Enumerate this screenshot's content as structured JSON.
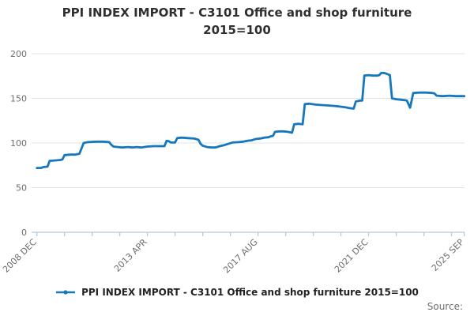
{
  "title": {
    "line1": "PPI INDEX IMPORT - C3101 Office and shop furniture",
    "line2": "2015=100"
  },
  "legend": {
    "label": "PPI INDEX IMPORT - C3101 Office and shop furniture 2015=100"
  },
  "source_label": "Source:",
  "colors": {
    "line": "#1577bd",
    "axis": "#b3cbdf",
    "grid": "#e3e3e3",
    "tick_label": "#6e6e6e"
  },
  "chart_data": {
    "type": "line",
    "title": "PPI INDEX IMPORT - C3101 Office and shop furniture 2015=100",
    "x_unit": "months since 2008 DEC",
    "x_tick_labels": [
      "2008 DEC",
      "2013 APR",
      "2017 AUG",
      "2021 DEC",
      "2025 SEP"
    ],
    "x_tick_label_months": [
      0,
      52,
      104,
      156,
      201
    ],
    "x_minor_tick_every_months": 13,
    "x_range_months": [
      0,
      201
    ],
    "y_ticks": [
      0,
      50,
      100,
      150,
      200
    ],
    "ylim": [
      0,
      200
    ],
    "grid": "horizontal",
    "legend_position": "bottom",
    "series": [
      {
        "name": "PPI INDEX IMPORT - C3101 Office and shop furniture 2015=100",
        "points": [
          [
            0,
            72
          ],
          [
            2,
            72
          ],
          [
            3,
            73
          ],
          [
            5,
            73.5
          ],
          [
            6,
            80
          ],
          [
            9,
            80.5
          ],
          [
            11,
            81
          ],
          [
            12,
            81.5
          ],
          [
            13,
            86.5
          ],
          [
            16,
            87
          ],
          [
            18,
            87
          ],
          [
            20,
            88
          ],
          [
            21,
            94
          ],
          [
            22,
            100
          ],
          [
            24,
            101
          ],
          [
            28,
            101.5
          ],
          [
            31,
            101.5
          ],
          [
            34,
            101
          ],
          [
            35,
            98
          ],
          [
            36,
            96
          ],
          [
            38,
            95.5
          ],
          [
            40,
            95
          ],
          [
            43,
            95.5
          ],
          [
            45,
            95
          ],
          [
            47,
            95.5
          ],
          [
            49,
            95
          ],
          [
            52,
            96
          ],
          [
            55,
            96.5
          ],
          [
            58,
            96.5
          ],
          [
            60,
            96.5
          ],
          [
            61,
            102.5
          ],
          [
            62,
            102
          ],
          [
            63,
            100.5
          ],
          [
            65,
            100.5
          ],
          [
            66,
            105.5
          ],
          [
            68,
            106
          ],
          [
            71,
            105.5
          ],
          [
            74,
            105
          ],
          [
            76,
            103.5
          ],
          [
            77,
            99
          ],
          [
            78,
            97
          ],
          [
            80,
            95.5
          ],
          [
            82,
            95
          ],
          [
            84,
            95
          ],
          [
            86,
            96.5
          ],
          [
            88,
            97.5
          ],
          [
            90,
            99
          ],
          [
            92,
            100.5
          ],
          [
            95,
            101
          ],
          [
            97,
            101.5
          ],
          [
            99,
            102.5
          ],
          [
            101,
            103
          ],
          [
            103,
            104.5
          ],
          [
            105,
            105
          ],
          [
            107,
            106
          ],
          [
            109,
            106.5
          ],
          [
            110,
            107.5
          ],
          [
            111,
            108
          ],
          [
            112,
            112.5
          ],
          [
            114,
            113
          ],
          [
            116,
            113
          ],
          [
            118,
            112.5
          ],
          [
            120,
            111.5
          ],
          [
            121,
            121
          ],
          [
            123,
            121.5
          ],
          [
            125,
            121
          ],
          [
            126,
            143.5
          ],
          [
            128,
            144
          ],
          [
            131,
            143
          ],
          [
            134,
            142.5
          ],
          [
            137,
            142
          ],
          [
            140,
            141.5
          ],
          [
            142,
            141
          ],
          [
            145,
            140
          ],
          [
            147,
            139
          ],
          [
            149,
            138.5
          ],
          [
            150,
            146.5
          ],
          [
            152,
            147.5
          ],
          [
            153,
            147.5
          ],
          [
            154,
            175.5
          ],
          [
            156,
            176
          ],
          [
            158,
            175.5
          ],
          [
            160,
            175.5
          ],
          [
            161,
            176
          ],
          [
            162,
            178.5
          ],
          [
            163,
            178.5
          ],
          [
            164,
            178
          ],
          [
            165,
            177
          ],
          [
            166,
            176
          ],
          [
            167,
            150
          ],
          [
            169,
            149
          ],
          [
            171,
            148.5
          ],
          [
            173,
            148
          ],
          [
            174,
            147.5
          ],
          [
            175.5,
            139.5
          ],
          [
            177,
            156
          ],
          [
            180,
            156.5
          ],
          [
            183,
            156.5
          ],
          [
            186,
            156
          ],
          [
            187,
            155.5
          ],
          [
            188,
            153
          ],
          [
            191,
            152.5
          ],
          [
            194,
            153
          ],
          [
            197,
            152.5
          ],
          [
            201,
            152.5
          ]
        ]
      }
    ]
  }
}
